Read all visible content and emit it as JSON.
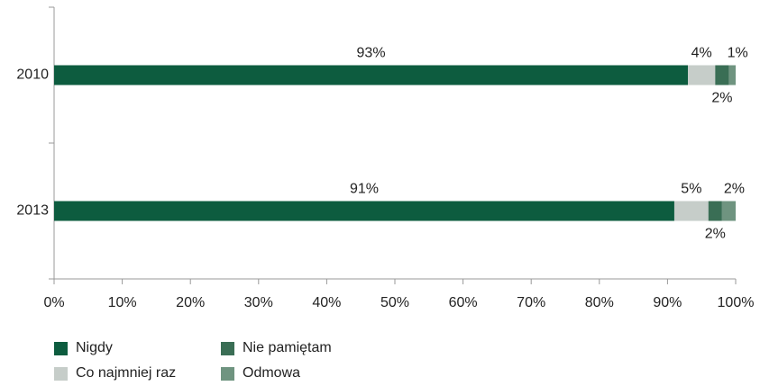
{
  "chart_data": {
    "type": "stacked-barh",
    "categories": [
      "2010",
      "2013"
    ],
    "series": [
      {
        "name": "Nigdy",
        "color": "#0d5c3f",
        "values": [
          93,
          91
        ],
        "value_labels": [
          "93%",
          "91%"
        ]
      },
      {
        "name": "Co najmniej raz",
        "color": "#c6cdc9",
        "values": [
          4,
          5
        ],
        "value_labels": [
          "4%",
          "5%"
        ]
      },
      {
        "name": "Nie pamiętam",
        "color": "#3a6e55",
        "values": [
          2,
          2
        ],
        "value_labels": [
          "2%",
          "2%"
        ]
      },
      {
        "name": "Odmowa",
        "color": "#6f9480",
        "values": [
          1,
          2
        ],
        "value_labels": [
          "1%",
          "2%"
        ]
      }
    ],
    "xlim": [
      0,
      100
    ],
    "xticks": [
      {
        "value": 0,
        "label": "0%"
      },
      {
        "value": 10,
        "label": "10%"
      },
      {
        "value": 20,
        "label": "20%"
      },
      {
        "value": 30,
        "label": "30%"
      },
      {
        "value": 40,
        "label": "40%"
      },
      {
        "value": 50,
        "label": "50%"
      },
      {
        "value": 60,
        "label": "60%"
      },
      {
        "value": 70,
        "label": "70%"
      },
      {
        "value": 80,
        "label": "80%"
      },
      {
        "value": 90,
        "label": "90%"
      },
      {
        "value": 100,
        "label": "100%"
      }
    ],
    "legend": "bottom-left"
  }
}
